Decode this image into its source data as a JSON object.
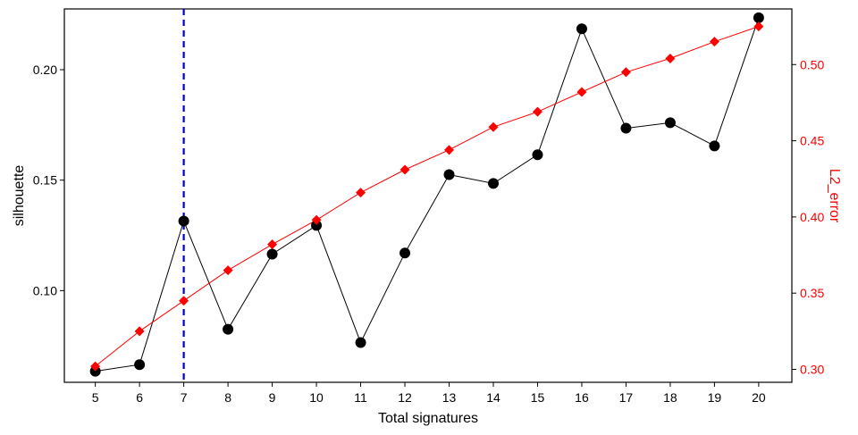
{
  "chart_data": {
    "type": "line",
    "xlabel": "Total signatures",
    "ylabel_left": "silhouette",
    "ylabel_right": "L2_error",
    "x": [
      5,
      6,
      7,
      8,
      9,
      10,
      11,
      12,
      13,
      14,
      15,
      16,
      17,
      18,
      19,
      20
    ],
    "xlim": [
      4.3,
      20.75
    ],
    "ylim_left": [
      0.0585,
      0.2275
    ],
    "ylim_right": [
      0.2915,
      0.5365
    ],
    "yticks_left": [
      0.1,
      0.15,
      0.2
    ],
    "yticks_left_labels": [
      "0.10",
      "0.15",
      "0.20"
    ],
    "yticks_right": [
      0.3,
      0.35,
      0.4,
      0.45,
      0.5
    ],
    "yticks_right_labels": [
      "0.30",
      "0.35",
      "0.40",
      "0.45",
      "0.50"
    ],
    "grid": false,
    "vline": {
      "x": 7,
      "color": "#0000cc",
      "style": "dashed"
    },
    "series": [
      {
        "axis": "left",
        "color": "#000000",
        "marker": "circle",
        "values": [
          0.0635,
          0.0665,
          0.1315,
          0.0825,
          0.1165,
          0.1295,
          0.0765,
          0.117,
          0.1525,
          0.1485,
          0.1615,
          0.2185,
          0.1735,
          0.176,
          0.1655,
          0.2235
        ]
      },
      {
        "axis": "right",
        "color": "#ff0000",
        "marker": "diamond",
        "values": [
          0.302,
          0.325,
          0.345,
          0.365,
          0.382,
          0.398,
          0.416,
          0.431,
          0.444,
          0.459,
          0.469,
          0.482,
          0.495,
          0.504,
          0.515,
          0.525
        ]
      }
    ]
  }
}
